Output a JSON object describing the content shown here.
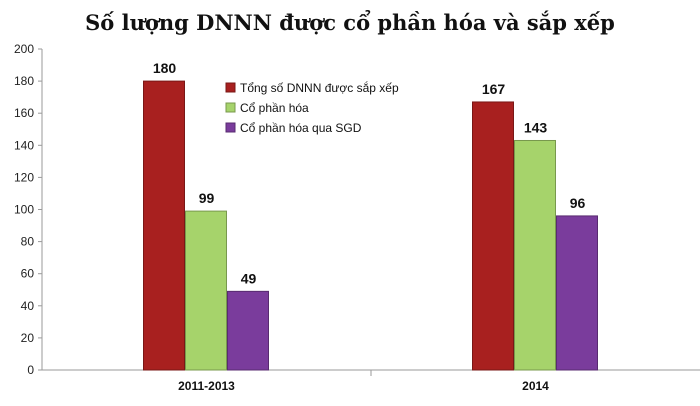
{
  "chart_data": {
    "type": "bar",
    "title": "Số lượng DNNN được cổ phần hóa và sắp xếp",
    "xlabel": "",
    "ylabel": "",
    "ylim": [
      0,
      200
    ],
    "yticks": [
      0,
      20,
      40,
      60,
      80,
      100,
      120,
      140,
      160,
      180,
      200
    ],
    "grid": false,
    "legend_position": "top-center",
    "categories": [
      "2011-2013",
      "2014"
    ],
    "series": [
      {
        "name": "Tổng số DNNN được sắp xếp",
        "values": [
          180,
          167
        ],
        "color": "#a8201f"
      },
      {
        "name": "Cổ phần hóa",
        "values": [
          99,
          143
        ],
        "color": "#a6d36b"
      },
      {
        "name": "Cổ phần hóa qua SGD",
        "values": [
          49,
          96
        ],
        "color": "#7a3c9c"
      }
    ]
  }
}
